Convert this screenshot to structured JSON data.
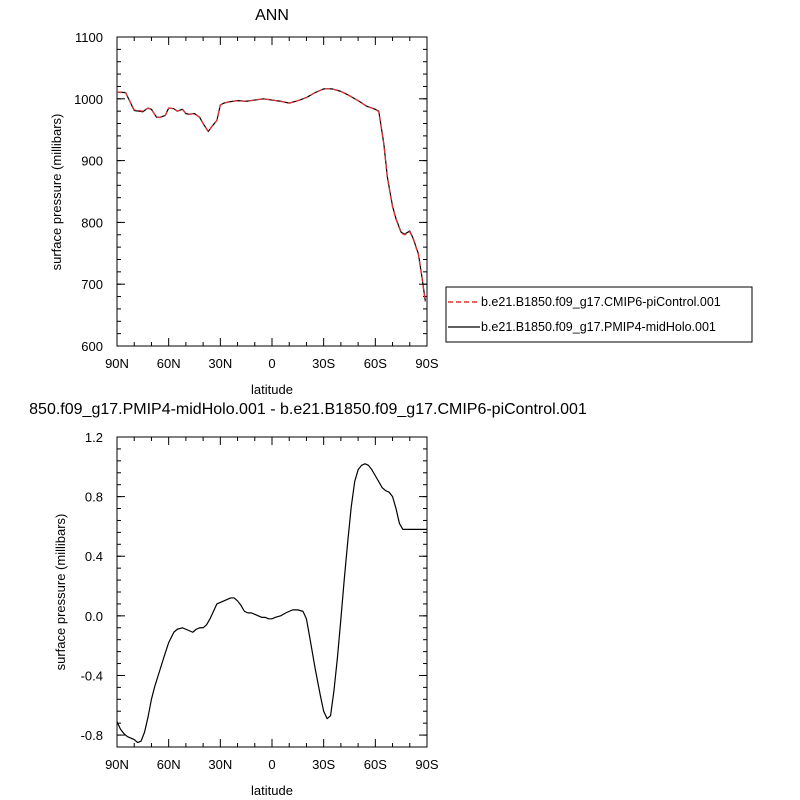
{
  "chart_data": [
    {
      "type": "line",
      "title": "ANN",
      "xlabel": "latitude",
      "ylabel": "surface pressure (millibars)",
      "x_tick_labels": [
        "90N",
        "60N",
        "30N",
        "0",
        "30S",
        "60S",
        "90S"
      ],
      "y_tick_labels": [
        "600",
        "700",
        "800",
        "900",
        "1000",
        "1100"
      ],
      "xlim": [
        90,
        -90
      ],
      "ylim": [
        600,
        1100
      ],
      "grid": false,
      "legend_position": "right",
      "colors": {
        "piControl": "#e03030",
        "midHolo": "#000000"
      },
      "series": [
        {
          "name": "b.e21.B1850.f09_g17.CMIP6-piControl.001",
          "style": "dashed",
          "color": "#e03030",
          "x": [
            90,
            85,
            80,
            75,
            72,
            70,
            67,
            65,
            62,
            60,
            57,
            55,
            52,
            50,
            48,
            45,
            42,
            40,
            37,
            35,
            32,
            30,
            28,
            25,
            20,
            15,
            10,
            5,
            0,
            -5,
            -10,
            -15,
            -20,
            -25,
            -30,
            -35,
            -40,
            -45,
            -50,
            -55,
            -60,
            -62,
            -65,
            -67,
            -70,
            -72,
            -75,
            -77,
            -80,
            -82,
            -85,
            -87,
            -89
          ],
          "y": [
            1011,
            1010,
            982,
            980,
            985,
            983,
            970,
            970,
            973,
            985,
            984,
            980,
            983,
            976,
            975,
            976,
            970,
            960,
            947,
            955,
            965,
            990,
            993,
            995,
            997,
            996,
            998,
            1000,
            998,
            996,
            993,
            997,
            1002,
            1010,
            1016,
            1016,
            1012,
            1005,
            997,
            988,
            983,
            979,
            925,
            872,
            825,
            805,
            783,
            780,
            785,
            773,
            748,
            712,
            672
          ]
        },
        {
          "name": "b.e21.B1850.f09_g17.PMIP4-midHolo.001",
          "style": "solid",
          "color": "#000000",
          "x": [
            90,
            85,
            80,
            75,
            72,
            70,
            67,
            65,
            62,
            60,
            57,
            55,
            52,
            50,
            48,
            45,
            42,
            40,
            37,
            35,
            32,
            30,
            28,
            25,
            20,
            15,
            10,
            5,
            0,
            -5,
            -10,
            -15,
            -20,
            -25,
            -30,
            -35,
            -40,
            -45,
            -50,
            -55,
            -60,
            -62,
            -65,
            -67,
            -70,
            -72,
            -75,
            -77,
            -80,
            -82,
            -85,
            -87,
            -89
          ],
          "y": [
            1011,
            1010,
            981,
            979,
            985,
            983,
            970,
            970,
            973,
            985,
            984,
            980,
            983,
            976,
            975,
            976,
            970,
            960,
            947,
            955,
            965,
            990,
            993,
            995,
            997,
            996,
            998,
            1000,
            998,
            996,
            993,
            997,
            1002,
            1010,
            1016,
            1016,
            1012,
            1005,
            997,
            988,
            983,
            980,
            926,
            873,
            826,
            806,
            784,
            781,
            786,
            774,
            749,
            713,
            673
          ]
        }
      ]
    },
    {
      "type": "line",
      "title": "850.f09_g17.PMIP4-midHolo.001 - b.e21.B1850.f09_g17.CMIP6-piControl.001",
      "xlabel": "latitude",
      "ylabel": "surface pressure (millibars)",
      "x_tick_labels": [
        "90N",
        "60N",
        "30N",
        "0",
        "30S",
        "60S",
        "90S"
      ],
      "y_tick_labels": [
        "-0.8",
        "-0.4",
        "0.0",
        "0.4",
        "0.8",
        "1.2"
      ],
      "xlim": [
        90,
        -90
      ],
      "ylim": [
        -0.88,
        1.2
      ],
      "grid": false,
      "series": [
        {
          "style": "solid",
          "color": "#000000",
          "x": [
            90,
            88,
            86,
            84,
            82,
            80,
            78,
            76,
            74,
            72,
            70,
            68,
            65,
            62,
            60,
            57,
            55,
            52,
            50,
            48,
            46,
            44,
            42,
            40,
            38,
            36,
            34,
            32,
            30,
            28,
            26,
            24,
            22,
            20,
            18,
            16,
            14,
            12,
            10,
            8,
            6,
            4,
            2,
            0,
            -2,
            -5,
            -8,
            -10,
            -12,
            -15,
            -18,
            -20,
            -22,
            -25,
            -28,
            -30,
            -32,
            -34,
            -36,
            -38,
            -40,
            -42,
            -44,
            -46,
            -48,
            -50,
            -52,
            -54,
            -56,
            -58,
            -60,
            -62,
            -64,
            -66,
            -68,
            -70,
            -72,
            -74,
            -76,
            -78,
            -80,
            -82,
            -84,
            -86,
            -88,
            -90
          ],
          "y": [
            -0.71,
            -0.76,
            -0.79,
            -0.81,
            -0.82,
            -0.83,
            -0.85,
            -0.84,
            -0.78,
            -0.68,
            -0.56,
            -0.47,
            -0.36,
            -0.25,
            -0.18,
            -0.11,
            -0.09,
            -0.08,
            -0.09,
            -0.1,
            -0.11,
            -0.09,
            -0.08,
            -0.08,
            -0.06,
            -0.02,
            0.03,
            0.08,
            0.09,
            0.1,
            0.11,
            0.12,
            0.12,
            0.1,
            0.07,
            0.03,
            0.02,
            0.02,
            0.01,
            0.0,
            -0.01,
            -0.01,
            -0.02,
            -0.02,
            -0.01,
            0.0,
            0.02,
            0.03,
            0.04,
            0.04,
            0.03,
            -0.02,
            -0.15,
            -0.35,
            -0.53,
            -0.64,
            -0.69,
            -0.67,
            -0.5,
            -0.28,
            -0.02,
            0.25,
            0.5,
            0.73,
            0.9,
            0.98,
            1.01,
            1.02,
            1.01,
            0.98,
            0.94,
            0.9,
            0.86,
            0.84,
            0.83,
            0.8,
            0.72,
            0.62,
            0.58,
            0.58,
            0.58,
            0.58,
            0.58,
            0.58,
            0.58,
            0.58
          ]
        }
      ]
    }
  ]
}
